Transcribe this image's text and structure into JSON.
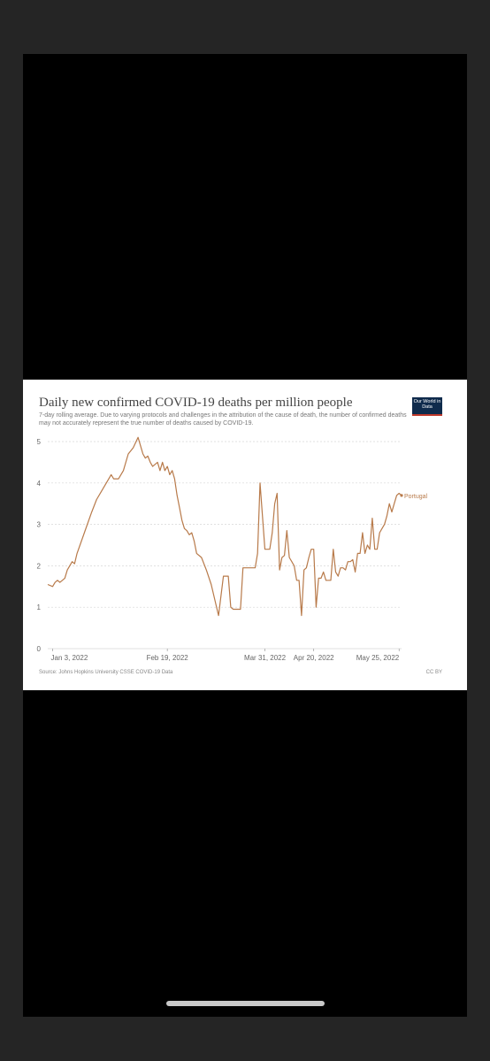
{
  "card": {
    "title": "Daily new confirmed COVID-19 deaths per million people",
    "subtitle": "7-day rolling average. Due to varying protocols and challenges in the attribution of the cause of death, the number of confirmed deaths may not accurately represent the true number of deaths caused by COVID-19.",
    "logo_text": "Our World in Data",
    "source": "Source: Johns Hopkins University CSSE COVID-19 Data",
    "license": "CC BY"
  },
  "colors": {
    "series": "#b87a4a",
    "logo_bg": "#0f2b4c",
    "logo_accent": "#c0392b"
  },
  "chart_data": {
    "type": "line",
    "title": "Daily new confirmed COVID-19 deaths per million people",
    "ylim": [
      0,
      5
    ],
    "yticks": [
      0,
      1,
      2,
      3,
      4,
      5
    ],
    "x_tick_labels": [
      "Jan 3, 2022",
      "Feb 19, 2022",
      "Mar 31, 2022",
      "Apr 20, 2022",
      "May 25, 2022"
    ],
    "x_tick_dates": [
      "2022-01-03",
      "2022-02-19",
      "2022-03-31",
      "2022-04-20",
      "2022-05-25"
    ],
    "xlim": [
      "2022-01-01",
      "2022-05-26"
    ],
    "grid": "horizontal dotted",
    "series": [
      {
        "name": "Portugal",
        "x": [
          "2022-01-01",
          "2022-01-03",
          "2022-01-04",
          "2022-01-05",
          "2022-01-06",
          "2022-01-08",
          "2022-01-09",
          "2022-01-11",
          "2022-01-12",
          "2022-01-13",
          "2022-01-16",
          "2022-01-19",
          "2022-01-21",
          "2022-01-23",
          "2022-01-25",
          "2022-01-27",
          "2022-01-28",
          "2022-01-30",
          "2022-02-01",
          "2022-02-03",
          "2022-02-05",
          "2022-02-07",
          "2022-02-09",
          "2022-02-10",
          "2022-02-11",
          "2022-02-12",
          "2022-02-13",
          "2022-02-15",
          "2022-02-16",
          "2022-02-17",
          "2022-02-18",
          "2022-02-19",
          "2022-02-20",
          "2022-02-21",
          "2022-02-22",
          "2022-02-23",
          "2022-02-24",
          "2022-02-25",
          "2022-02-26",
          "2022-02-27",
          "2022-02-28",
          "2022-03-01",
          "2022-03-02",
          "2022-03-03",
          "2022-03-05",
          "2022-03-07",
          "2022-03-09",
          "2022-03-11",
          "2022-03-12",
          "2022-03-14",
          "2022-03-16",
          "2022-03-17",
          "2022-03-18",
          "2022-03-21",
          "2022-03-22",
          "2022-03-23",
          "2022-03-24",
          "2022-03-25",
          "2022-03-27",
          "2022-03-28",
          "2022-03-29",
          "2022-03-31",
          "2022-04-01",
          "2022-04-02",
          "2022-04-03",
          "2022-04-04",
          "2022-04-05",
          "2022-04-06",
          "2022-04-07",
          "2022-04-08",
          "2022-04-09",
          "2022-04-10",
          "2022-04-11",
          "2022-04-12",
          "2022-04-13",
          "2022-04-14",
          "2022-04-15",
          "2022-04-16",
          "2022-04-17",
          "2022-04-18",
          "2022-04-19",
          "2022-04-20",
          "2022-04-21",
          "2022-04-22",
          "2022-04-23",
          "2022-04-24",
          "2022-04-25",
          "2022-04-26",
          "2022-04-27",
          "2022-04-28",
          "2022-04-29",
          "2022-04-30",
          "2022-05-01",
          "2022-05-02",
          "2022-05-03",
          "2022-05-04",
          "2022-05-05",
          "2022-05-06",
          "2022-05-07",
          "2022-05-08",
          "2022-05-09",
          "2022-05-10",
          "2022-05-11",
          "2022-05-12",
          "2022-05-13",
          "2022-05-14",
          "2022-05-15",
          "2022-05-16",
          "2022-05-17",
          "2022-05-18",
          "2022-05-19",
          "2022-05-20",
          "2022-05-21",
          "2022-05-22",
          "2022-05-23",
          "2022-05-24",
          "2022-05-25",
          "2022-05-26"
        ],
        "y": [
          1.55,
          1.5,
          1.6,
          1.65,
          1.6,
          1.7,
          1.9,
          2.1,
          2.05,
          2.3,
          2.8,
          3.3,
          3.6,
          3.8,
          4.0,
          4.2,
          4.1,
          4.1,
          4.3,
          4.7,
          4.85,
          5.1,
          4.7,
          4.6,
          4.65,
          4.5,
          4.4,
          4.5,
          4.3,
          4.5,
          4.3,
          4.4,
          4.2,
          4.3,
          4.1,
          3.7,
          3.4,
          3.1,
          2.9,
          2.85,
          2.75,
          2.8,
          2.6,
          2.3,
          2.2,
          1.9,
          1.55,
          1.05,
          0.8,
          1.75,
          1.75,
          1.0,
          0.95,
          0.95,
          1.95,
          1.95,
          1.95,
          1.95,
          1.95,
          2.3,
          4.0,
          2.4,
          2.4,
          2.4,
          2.8,
          3.5,
          3.75,
          1.9,
          2.2,
          2.25,
          2.85,
          2.2,
          2.1,
          2.0,
          1.65,
          1.65,
          0.8,
          1.9,
          1.95,
          2.2,
          2.4,
          2.4,
          1.0,
          1.7,
          1.7,
          1.85,
          1.65,
          1.65,
          1.65,
          2.4,
          1.85,
          1.75,
          1.95,
          1.95,
          1.9,
          2.1,
          2.1,
          2.15,
          1.85,
          2.3,
          2.3,
          2.8,
          2.3,
          2.5,
          2.4,
          3.15,
          2.4,
          2.4,
          2.8,
          2.9,
          3.0,
          3.2,
          3.5,
          3.3,
          3.5,
          3.7,
          3.75,
          3.7
        ]
      }
    ]
  }
}
